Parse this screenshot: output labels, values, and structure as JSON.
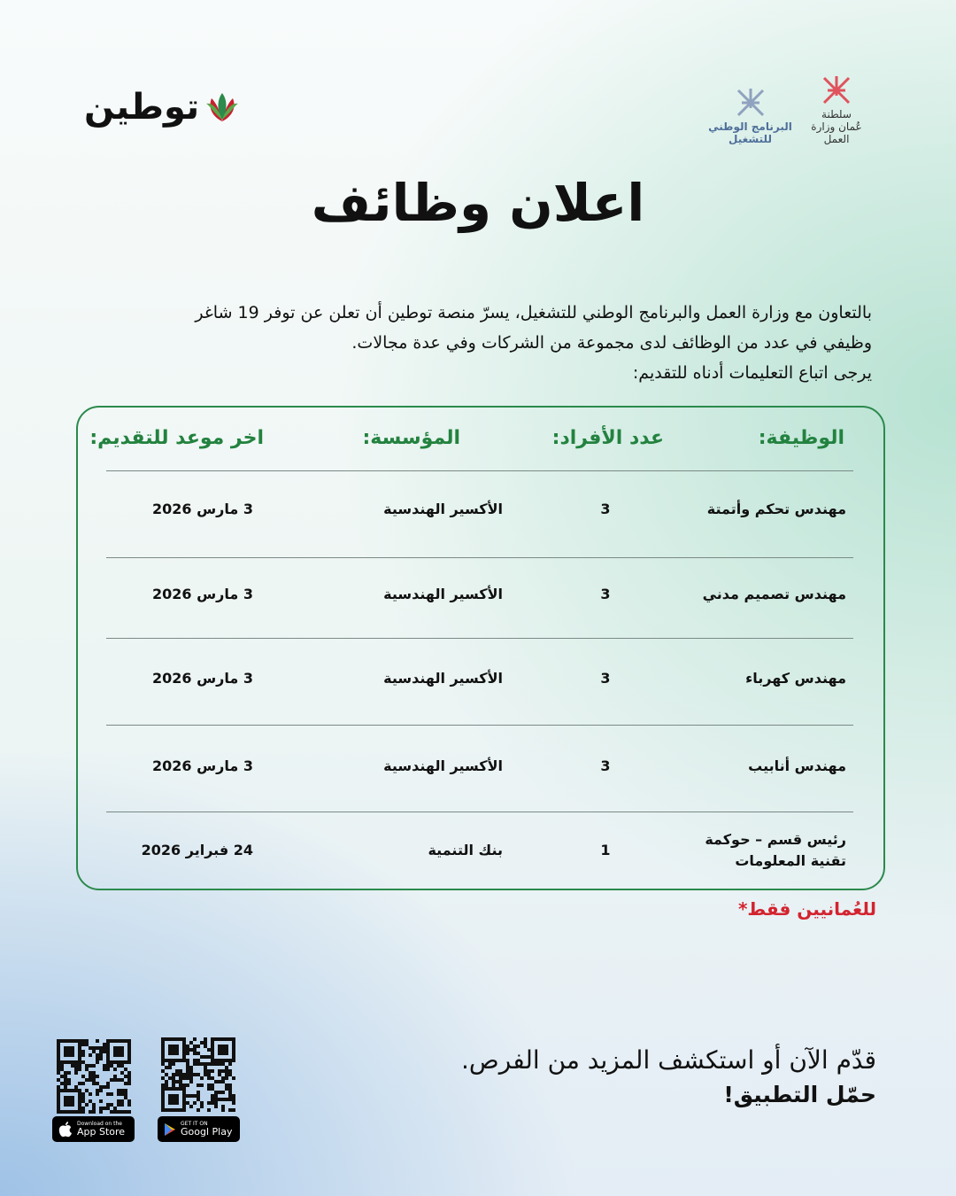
{
  "brand": {
    "name": "توطين"
  },
  "gov_logos": {
    "ministry": "سلطنة عُمان وزارة العمل",
    "program": "البرنامج الوطني للتشغيل"
  },
  "title": "اعلان وظائف",
  "intro": [
    "بالتعاون مع وزارة العمل والبرنامج الوطني للتشغيل، يسرّ منصة توطين أن تعلن عن توفر 19 شاغر",
    "وظيفي في عدد من الوظائف لدى مجموعة من الشركات وفي عدة مجالات.",
    "يرجى اتباع التعليمات أدناه للتقديم:"
  ],
  "table": {
    "headers": [
      "الوظيفة:",
      "عدد الأفراد:",
      "المؤسسة:",
      "اخر موعد للتقديم:"
    ],
    "rows": [
      [
        "مهندس تحكم وأتمتة",
        "3",
        "الأكسير الهندسية",
        "3 مارس 2026"
      ],
      [
        "مهندس تصميم مدني",
        "3",
        "الأكسير الهندسية",
        "3 مارس 2026"
      ],
      [
        "مهندس كهرباء",
        "3",
        "الأكسير الهندسية",
        "3 مارس 2026"
      ],
      [
        "مهندس أنابيب",
        "3",
        "الأكسير الهندسية",
        "3 مارس 2026"
      ],
      [
        "رئيس قسم – حوكمة تقنية المعلومات",
        "1",
        "بنك التنمية",
        "24 فبراير 2026"
      ]
    ]
  },
  "note": "للعُمانيين فقط*",
  "cta": {
    "line1": "قدّم الآن أو استكشف المزيد من الفرص.",
    "line2": "حمّل التطبيق!"
  },
  "stores": {
    "apple_small": "Download on the",
    "apple_big": "App Store",
    "google_small": "GET IT ON",
    "google_big": "Googl  Play"
  },
  "colors": {
    "accent": "#2b8a4c",
    "note": "#d3232f"
  }
}
